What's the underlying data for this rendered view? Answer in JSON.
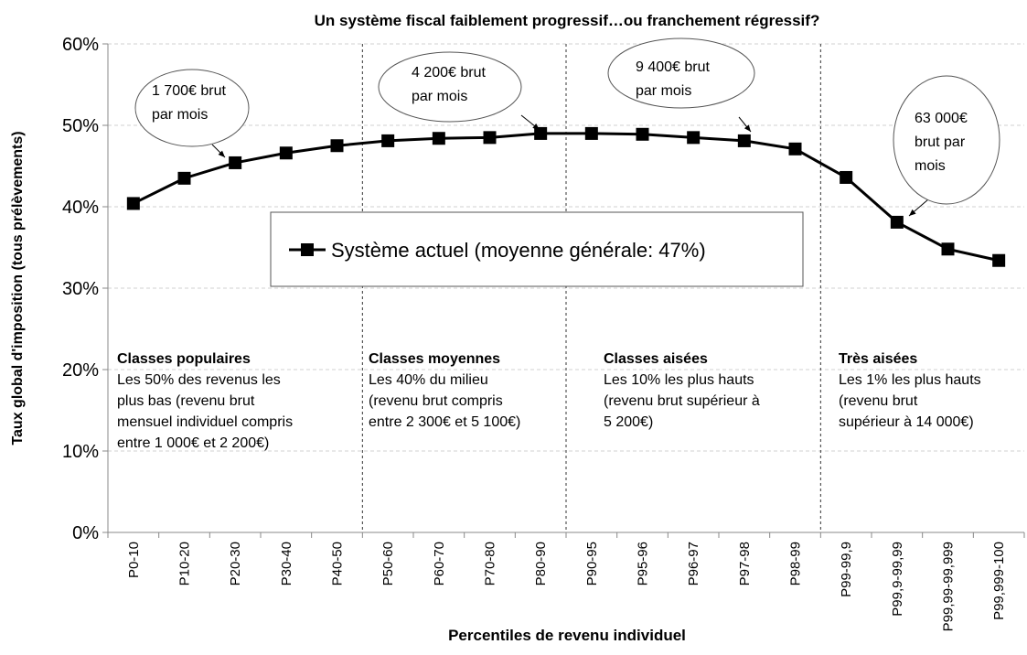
{
  "chart_data": {
    "type": "line",
    "title": "Un système fiscal faiblement progressif…ou franchement régressif?",
    "x_label": "Percentiles de revenu individuel",
    "y_label": "Taux global d'imposition (tous prélèvements)",
    "categories": [
      "P0-10",
      "P10-20",
      "P20-30",
      "P30-40",
      "P40-50",
      "P50-60",
      "P60-70",
      "P70-80",
      "P80-90",
      "P90-95",
      "P95-96",
      "P96-97",
      "P97-98",
      "P98-99",
      "P99-99,9",
      "P99,9-99,99",
      "P99,99-99,999",
      "P99,999-100"
    ],
    "series": [
      {
        "name": "Système actuel (moyenne générale: 47%)",
        "color": "#000000",
        "values": [
          40.4,
          43.5,
          45.4,
          46.6,
          47.5,
          48.1,
          48.4,
          48.5,
          49.0,
          49.0,
          48.9,
          48.5,
          48.1,
          47.1,
          43.6,
          38.1,
          34.8,
          33.4
        ]
      }
    ],
    "ylim": [
      0,
      60
    ],
    "yticks": [
      {
        "value": 0,
        "label": "0%"
      },
      {
        "value": 10,
        "label": "10%"
      },
      {
        "value": 20,
        "label": "20%"
      },
      {
        "value": 30,
        "label": "30%"
      },
      {
        "value": 40,
        "label": "40%"
      },
      {
        "value": 50,
        "label": "50%"
      },
      {
        "value": 60,
        "label": "60%"
      }
    ],
    "grid": true,
    "groups": [
      {
        "title": "Classes populaires",
        "lines": [
          "Les 50% des revenus les",
          "plus bas (revenu brut",
          "mensuel individuel compris",
          "entre 1 000€ et 2 200€)"
        ]
      },
      {
        "title": "Classes moyennes",
        "lines": [
          "Les 40% du milieu",
          "(revenu brut compris",
          "entre 2 300€ et 5 100€)"
        ]
      },
      {
        "title": "Classes aisées",
        "lines": [
          "Les 10% les plus hauts",
          "(revenu brut supérieur à",
          "5 200€)"
        ]
      },
      {
        "title": "Très aisées",
        "lines": [
          "Les 1% les plus hauts",
          "(revenu brut",
          "supérieur à 14 000€)"
        ]
      }
    ],
    "callouts": [
      {
        "lines": [
          "1 700€ brut",
          "par mois"
        ]
      },
      {
        "lines": [
          "4 200€ brut",
          "par mois"
        ]
      },
      {
        "lines": [
          "9 400€ brut",
          "par mois"
        ]
      },
      {
        "lines": [
          "63 000€",
          "brut par",
          "mois"
        ]
      }
    ]
  }
}
